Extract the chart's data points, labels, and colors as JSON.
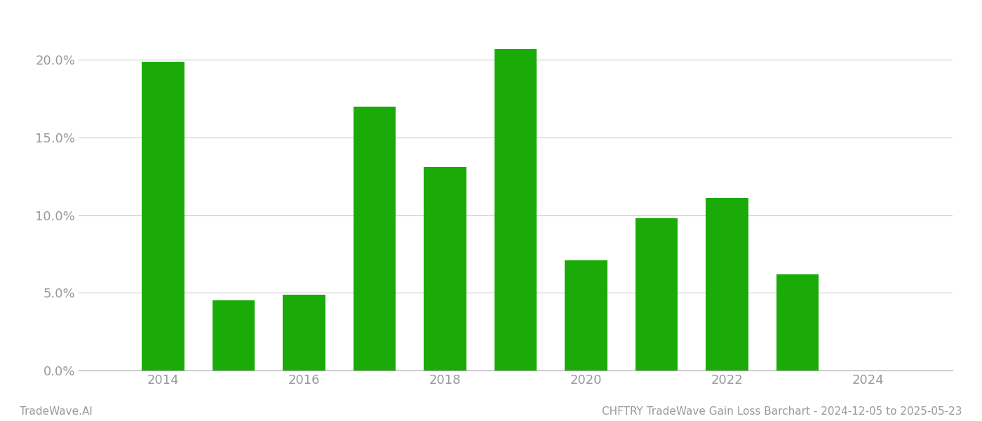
{
  "years": [
    2014,
    2015,
    2016,
    2017,
    2018,
    2019,
    2020,
    2021,
    2022,
    2023
  ],
  "values": [
    0.199,
    0.045,
    0.049,
    0.17,
    0.131,
    0.207,
    0.071,
    0.098,
    0.111,
    0.062
  ],
  "bar_color": "#1aab08",
  "background_color": "#ffffff",
  "grid_color": "#cccccc",
  "axis_color": "#aaaaaa",
  "tick_label_color": "#999999",
  "ylim": [
    0,
    0.225
  ],
  "yticks": [
    0.0,
    0.05,
    0.1,
    0.15,
    0.2
  ],
  "xtick_labels": [
    "2014",
    "2016",
    "2018",
    "2020",
    "2022",
    "2024"
  ],
  "xtick_positions": [
    2014,
    2016,
    2018,
    2020,
    2022,
    2024
  ],
  "footer_left": "TradeWave.AI",
  "footer_right": "CHFTRY TradeWave Gain Loss Barchart - 2024-12-05 to 2025-05-23",
  "bar_width": 0.6,
  "xlim": [
    2012.8,
    2025.2
  ],
  "figsize": [
    14.0,
    6.0
  ],
  "dpi": 100,
  "footer_fontsize": 11,
  "tick_fontsize": 13
}
